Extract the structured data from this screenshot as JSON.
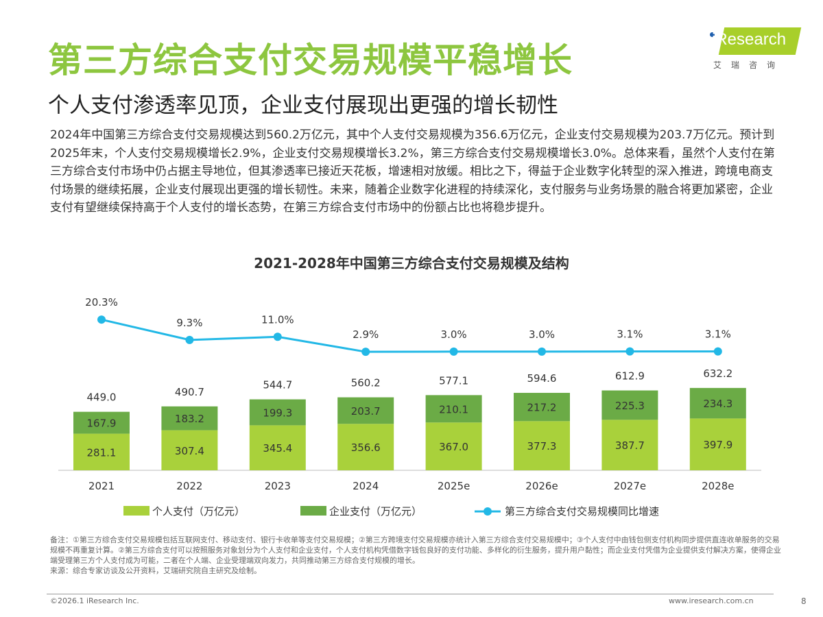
{
  "header": {
    "title": "第三方综合支付交易规模平稳增长",
    "subtitle": "个人支付渗透率见顶，企业支付展现出更强的增长韧性",
    "body": "2024年中国第三方综合支付交易规模达到560.2万亿元，其中个人支付交易规模为356.6万亿元，企业支付交易规模为203.7万亿元。预计到2025年末，个人支付交易规模增长2.9%，企业支付交易规模增长3.2%，第三方综合支付交易规模增长3.0%。总体来看，虽然个人支付在第三方综合支付市场中仍占据主导地位，但其渗透率已接近天花板，增速相对放缓。相比之下，得益于企业数字化转型的深入推进，跨境电商支付场景的继续拓展，企业支付展现出更强的增长韧性。未来，随着企业数字化进程的持续深化，支付服务与业务场景的融合将更加紧密，企业支付有望继续保持高于个人支付的增长态势，在第三方综合支付市场中的份额占比也将稳步提升。"
  },
  "logo": {
    "text": "iResearch",
    "cn": "艾瑞咨询"
  },
  "chart_data": {
    "type": "bar",
    "title": "2021-2028年中国第三方综合支付交易规模及结构",
    "categories": [
      "2021",
      "2022",
      "2023",
      "2024",
      "2025e",
      "2026e",
      "2027e",
      "2028e"
    ],
    "series": [
      {
        "name": "个人支付（万亿元）",
        "type": "bar",
        "color": "#a9d13b",
        "values": [
          281.1,
          307.4,
          345.4,
          356.6,
          367.0,
          377.3,
          387.7,
          397.9
        ]
      },
      {
        "name": "企业支付（万亿元）",
        "type": "bar",
        "color": "#6bab46",
        "values": [
          167.9,
          183.2,
          199.3,
          203.7,
          210.1,
          217.2,
          225.3,
          234.3
        ]
      },
      {
        "name": "第三方综合支付交易规模同比增速",
        "type": "line",
        "color": "#22b8e6",
        "values": [
          20.3,
          9.3,
          11.0,
          2.9,
          3.0,
          3.0,
          3.1,
          3.1
        ]
      }
    ],
    "totals": [
      "449.0",
      "490.7",
      "544.7",
      "560.2",
      "577.1",
      "594.6",
      "612.9",
      "632.2"
    ],
    "line_labels": [
      "20.3%",
      "9.3%",
      "11.0%",
      "2.9%",
      "3.0%",
      "3.0%",
      "3.1%",
      "3.1%"
    ],
    "legend_position": "bottom",
    "grid": false
  },
  "notes": "备注：①第三方综合支付交易规模包括互联网支付、移动支付、银行卡收单等支付交易规模；②第三方跨境支付交易规模亦统计入第三方综合支付交易规模中；③个人支付中由钱包侧支付机构同步提供直连收单服务的交易规模不再重复计算。②第三方综合支付可以按照服务对象划分为个人支付和企业支付，个人支付机构凭借数字钱包良好的支付功能、多样化的衍生服务，提升用户黏性；而企业支付凭借为企业提供支付解决方案，使得企业端受理第三方个人支付成为可能，二者在个人端、企业受理端双向发力，共同推动第三方综合支付规模的增长。",
  "source": "来源：综合专家访谈及公开资料，艾瑞研究院自主研究及绘制。",
  "footer": {
    "copyright": "©2026.1 iResearch Inc.",
    "url": "www.iresearch.com.cn",
    "page": "8"
  }
}
